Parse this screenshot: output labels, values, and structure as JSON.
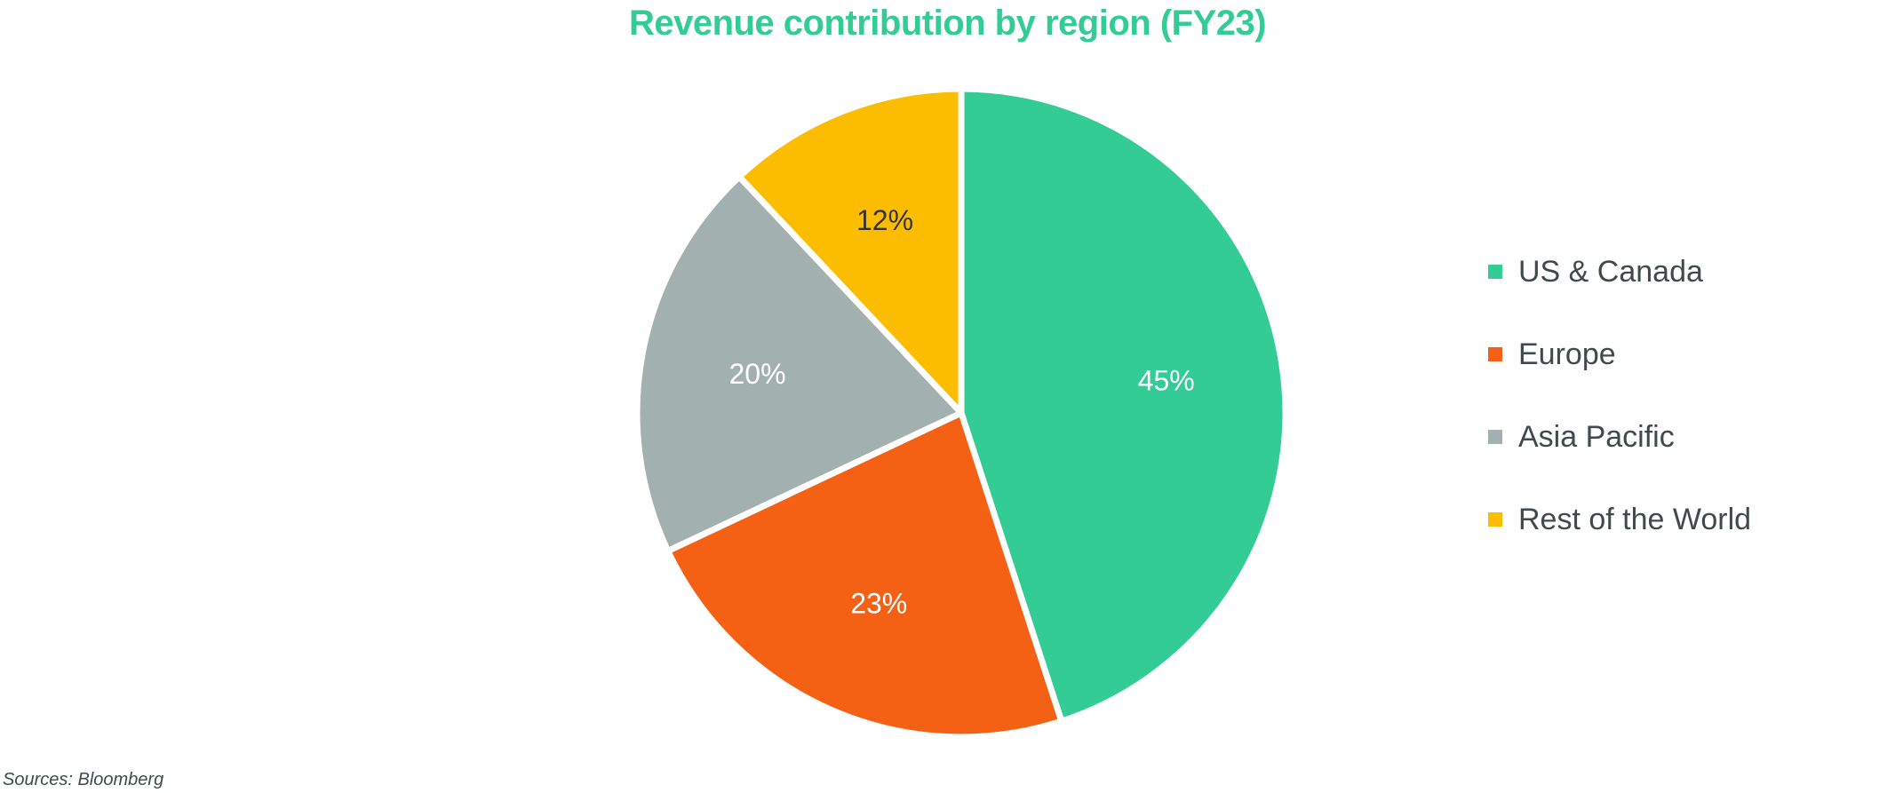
{
  "chart_data": {
    "type": "pie",
    "title": "Revenue contribution by region (FY23)",
    "categories": [
      "US & Canada",
      "Europe",
      "Asia Pacific",
      "Rest of the World"
    ],
    "values": [
      45,
      23,
      20,
      12
    ],
    "data_labels": [
      "45%",
      "23%",
      "20%",
      "12%"
    ],
    "colors": [
      "#33cc94",
      "#f56114",
      "#a2b1af",
      "#fcbd00"
    ],
    "label_colors": [
      "#ffffff",
      "#ffffff",
      "#ffffff",
      "#333333"
    ],
    "start_angle": "12 o'clock",
    "direction": "clockwise",
    "legend_position": "right"
  },
  "source": "Sources: Bloomberg"
}
